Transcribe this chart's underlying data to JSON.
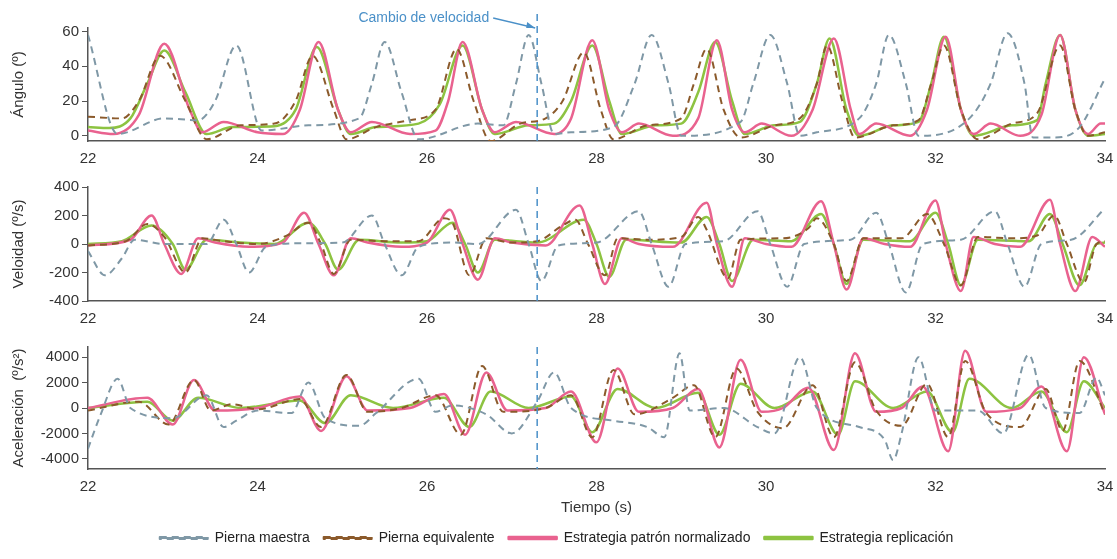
{
  "chart_data": [
    {
      "type": "line",
      "ylabel": "Ángulo (º)",
      "xlim": [
        22,
        34
      ],
      "xticks": [
        22,
        24,
        26,
        28,
        30,
        32,
        34
      ],
      "ylim": [
        -3,
        62
      ],
      "yticks": [
        0,
        20,
        40,
        60
      ],
      "grid": false,
      "legend": false,
      "ref_lines": [
        {
          "axis": "x",
          "value": 27.3,
          "label": "Cambio de velocidad",
          "color": "#4a90c8",
          "line_style": "dashed"
        }
      ],
      "series": [
        {
          "color": "#7f98a6",
          "line_style": "dashed",
          "x": [
            22,
            22.35,
            22.9,
            23.3,
            23.5,
            23.75,
            24.05,
            24.6,
            25.2,
            25.35,
            25.5,
            25.7,
            25.9,
            26.6,
            26.9,
            27.05,
            27.2,
            27.35,
            27.5,
            27.7,
            28.2,
            28.45,
            28.65,
            28.85,
            29.0,
            29.7,
            29.85,
            30.05,
            30.25,
            30.4,
            30.6,
            31.1,
            31.3,
            31.45,
            31.65,
            31.8,
            32.4,
            32.65,
            32.85,
            33.05,
            33.15,
            33.4,
            33.7,
            34
          ],
          "values": [
            58,
            1,
            10,
            9,
            20,
            52,
            3,
            6,
            10,
            30,
            54,
            25,
            -2,
            7,
            6,
            30,
            58,
            30,
            1,
            2,
            5,
            30,
            58,
            30,
            0,
            8,
            30,
            58,
            30,
            0,
            2,
            10,
            30,
            58,
            30,
            0,
            10,
            30,
            59,
            30,
            -1,
            -1,
            5,
            33
          ]
        },
        {
          "color": "#8b5a2b",
          "line_style": "dashed",
          "x": [
            22,
            22.4,
            22.6,
            22.85,
            23.15,
            23.4,
            23.8,
            24.2,
            24.45,
            24.65,
            24.9,
            25.05,
            25.4,
            25.8,
            26.1,
            26.35,
            26.55,
            26.75,
            27.1,
            27.4,
            27.6,
            27.85,
            28.05,
            28.2,
            28.6,
            29.0,
            29.15,
            29.3,
            29.5,
            29.7,
            30.1,
            30.4,
            30.6,
            30.72,
            30.9,
            31.05,
            31.5,
            31.8,
            31.95,
            32.1,
            32.3,
            32.5,
            32.9,
            33.2,
            33.47,
            33.65,
            33.8,
            34
          ],
          "values": [
            11,
            10,
            20,
            46,
            20,
            -2,
            6,
            7,
            20,
            46,
            15,
            -2,
            5,
            9,
            15,
            50,
            20,
            -3,
            7,
            10,
            20,
            48,
            15,
            -2,
            6,
            10,
            30,
            50,
            15,
            -1,
            6,
            10,
            30,
            52,
            20,
            -1,
            6,
            9,
            30,
            52,
            15,
            -2,
            7,
            13,
            52,
            15,
            0,
            2
          ]
        },
        {
          "color": "#e9628f",
          "line_style": "solid",
          "x": [
            22,
            22.3,
            22.6,
            22.9,
            23.2,
            23.35,
            23.6,
            24.0,
            24.3,
            24.5,
            24.72,
            24.95,
            25.1,
            25.35,
            25.8,
            26.1,
            26.25,
            26.42,
            26.65,
            26.8,
            27.05,
            27.5,
            27.7,
            27.95,
            28.15,
            28.3,
            28.5,
            28.9,
            29.2,
            29.42,
            29.6,
            29.75,
            29.95,
            30.3,
            30.55,
            30.8,
            31.0,
            31.1,
            31.3,
            31.7,
            31.9,
            32.12,
            32.3,
            32.45,
            32.65,
            33.0,
            33.25,
            33.47,
            33.65,
            33.8,
            33.95,
            34
          ],
          "values": [
            3,
            1,
            12,
            53,
            15,
            2,
            8,
            2,
            1,
            15,
            54,
            15,
            2,
            8,
            1,
            3,
            20,
            54,
            15,
            2,
            8,
            1,
            10,
            55,
            15,
            2,
            7,
            0,
            10,
            55,
            15,
            2,
            7,
            0,
            15,
            56,
            15,
            1,
            7,
            0,
            15,
            57,
            15,
            1,
            7,
            0,
            12,
            58,
            15,
            1,
            7,
            7
          ]
        },
        {
          "color": "#8dc341",
          "line_style": "solid",
          "x": [
            22,
            22.25,
            22.5,
            22.7,
            22.9,
            23.15,
            23.4,
            23.7,
            24.2,
            24.45,
            24.7,
            24.95,
            25.1,
            25.4,
            25.9,
            26.15,
            26.42,
            26.65,
            26.8,
            27.2,
            27.5,
            27.7,
            27.95,
            28.15,
            28.3,
            28.7,
            29.0,
            29.2,
            29.4,
            29.6,
            29.75,
            30.1,
            30.4,
            30.6,
            30.75,
            30.95,
            31.1,
            31.5,
            31.8,
            31.95,
            32.1,
            32.3,
            32.45,
            32.9,
            33.2,
            33.3,
            33.47,
            33.65,
            33.8,
            34
          ],
          "values": [
            5,
            4.5,
            10,
            30,
            49,
            25,
            1,
            5,
            5.5,
            15,
            51,
            15,
            1,
            5,
            7,
            18,
            52,
            15,
            1,
            6,
            7,
            20,
            52,
            20,
            1,
            6,
            7,
            25,
            54,
            20,
            1,
            6,
            8,
            30,
            56,
            15,
            0,
            6,
            8,
            30,
            57,
            15,
            0,
            6,
            9,
            30,
            58,
            15,
            0,
            1
          ]
        }
      ]
    },
    {
      "type": "line",
      "ylabel": "Veloidad (º/s)",
      "xlim": [
        22,
        34
      ],
      "xticks": [
        22,
        24,
        26,
        28,
        30,
        32,
        34
      ],
      "ylim": [
        -400,
        400
      ],
      "yticks": [
        -400,
        -200,
        0,
        200,
        400
      ],
      "grid": false,
      "legend": false,
      "ref_lines": [
        {
          "axis": "x",
          "value": 27.3,
          "color": "#4a90c8",
          "line_style": "dashed"
        }
      ],
      "series": [
        {
          "color": "#7f98a6",
          "line_style": "dashed",
          "x": [
            22,
            22.2,
            22.4,
            22.55,
            22.9,
            23.4,
            23.6,
            23.75,
            23.9,
            24.1,
            24.5,
            25.0,
            25.35,
            25.5,
            25.7,
            25.9,
            26.3,
            26.6,
            27.05,
            27.2,
            27.35,
            27.55,
            28.0,
            28.5,
            28.65,
            28.85,
            29.05,
            29.5,
            29.9,
            30.05,
            30.25,
            30.45,
            31.0,
            31.3,
            31.45,
            31.65,
            31.85,
            32.3,
            32.7,
            32.85,
            33.05,
            33.25,
            33.6,
            34
          ],
          "values": [
            -50,
            -220,
            -100,
            30,
            0,
            0,
            170,
            0,
            -200,
            -20,
            5,
            10,
            200,
            0,
            -220,
            -20,
            10,
            0,
            240,
            0,
            -260,
            -10,
            10,
            230,
            0,
            -300,
            0,
            20,
            230,
            0,
            -300,
            0,
            30,
            220,
            0,
            -340,
            0,
            30,
            230,
            0,
            -300,
            0,
            30,
            250
          ]
        },
        {
          "color": "#8b5a2b",
          "line_style": "dashed",
          "x": [
            22,
            22.45,
            22.7,
            22.9,
            23.15,
            23.35,
            23.6,
            24.0,
            24.35,
            24.6,
            24.75,
            24.9,
            25.1,
            25.5,
            25.9,
            26.2,
            26.3,
            26.5,
            26.7,
            27.0,
            27.3,
            27.6,
            27.75,
            27.9,
            28.1,
            28.25,
            28.6,
            29.0,
            29.2,
            29.3,
            29.55,
            29.7,
            30.2,
            30.5,
            30.6,
            30.8,
            30.95,
            31.15,
            31.6,
            31.9,
            32.1,
            32.3,
            32.5,
            32.9,
            33.2,
            33.4,
            33.55,
            33.75,
            33.9,
            34
          ],
          "values": [
            -10,
            20,
            140,
            50,
            -200,
            40,
            20,
            0,
            60,
            150,
            0,
            -210,
            30,
            20,
            20,
            180,
            150,
            -220,
            40,
            10,
            20,
            130,
            170,
            0,
            -220,
            40,
            30,
            50,
            190,
            100,
            -240,
            30,
            40,
            110,
            180,
            0,
            -260,
            40,
            40,
            210,
            0,
            -290,
            50,
            40,
            60,
            200,
            0,
            -270,
            0,
            20
          ]
        },
        {
          "color": "#e9628f",
          "line_style": "solid",
          "x": [
            22,
            22.5,
            22.75,
            22.9,
            23.1,
            23.3,
            23.5,
            23.9,
            24.3,
            24.55,
            24.72,
            24.9,
            25.1,
            25.3,
            25.7,
            26.0,
            26.27,
            26.42,
            26.6,
            26.8,
            27.0,
            27.4,
            27.8,
            27.95,
            28.1,
            28.3,
            28.5,
            28.9,
            29.3,
            29.42,
            29.6,
            29.75,
            30.0,
            30.3,
            30.65,
            30.8,
            30.95,
            31.15,
            31.4,
            31.7,
            32.0,
            32.12,
            32.3,
            32.45,
            32.7,
            33.0,
            33.35,
            33.47,
            33.65,
            33.85,
            34
          ],
          "values": [
            -10,
            30,
            200,
            0,
            -210,
            40,
            10,
            -20,
            10,
            220,
            0,
            -220,
            40,
            10,
            -20,
            10,
            240,
            0,
            -250,
            40,
            10,
            -10,
            270,
            0,
            -280,
            40,
            0,
            -20,
            290,
            0,
            -300,
            40,
            0,
            -20,
            300,
            0,
            -320,
            40,
            0,
            -20,
            305,
            0,
            -330,
            50,
            0,
            -20,
            310,
            0,
            -330,
            50,
            -20
          ]
        },
        {
          "color": "#8dc341",
          "line_style": "solid",
          "x": [
            22,
            22.4,
            22.75,
            23.0,
            23.15,
            23.4,
            23.8,
            24.2,
            24.6,
            24.8,
            24.95,
            25.2,
            25.7,
            26.0,
            26.3,
            26.45,
            26.6,
            26.8,
            27.3,
            27.85,
            28.0,
            28.15,
            28.35,
            29.0,
            29.3,
            29.45,
            29.6,
            29.85,
            30.3,
            30.65,
            30.8,
            30.95,
            31.15,
            31.7,
            32.0,
            32.15,
            32.3,
            32.5,
            33.1,
            33.35,
            33.5,
            33.7,
            33.9,
            34
          ],
          "values": [
            0,
            20,
            130,
            0,
            -180,
            30,
            10,
            0,
            150,
            0,
            -180,
            30,
            10,
            20,
            150,
            0,
            -200,
            30,
            10,
            170,
            0,
            -230,
            30,
            10,
            190,
            0,
            -260,
            30,
            20,
            210,
            0,
            -280,
            30,
            20,
            220,
            0,
            -290,
            30,
            20,
            210,
            0,
            -290,
            0,
            10
          ]
        }
      ]
    },
    {
      "type": "line",
      "xlabel": "Tiempo (s)",
      "ylabel": "Aceleración  (º/s²)",
      "xlim": [
        22,
        34
      ],
      "xticks": [
        22,
        24,
        26,
        28,
        30,
        32,
        34
      ],
      "ylim": [
        -4800,
        4800
      ],
      "yticks": [
        -4000,
        -2000,
        0,
        2000,
        4000
      ],
      "grid": false,
      "legend": "bottom",
      "ref_lines": [
        {
          "axis": "x",
          "value": 27.3,
          "color": "#4a90c8",
          "line_style": "dashed"
        }
      ],
      "series": [
        {
          "name": "Pierna maestra",
          "color": "#7f98a6",
          "line_style": "dashed",
          "x": [
            22,
            22.15,
            22.35,
            22.5,
            23.0,
            23.4,
            23.6,
            23.75,
            24.0,
            24.4,
            24.6,
            24.8,
            25.2,
            25.4,
            25.9,
            26.1,
            26.3,
            26.7,
            27.0,
            27.3,
            27.5,
            27.7,
            28.2,
            28.6,
            28.8,
            28.98,
            29.1,
            29.5,
            29.9,
            30.1,
            30.4,
            30.6,
            31.1,
            31.4,
            31.5,
            31.6,
            31.8,
            32.0,
            32.5,
            32.8,
            33.1,
            33.3,
            33.7,
            33.9,
            34
          ],
          "values": [
            -3200,
            -500,
            2300,
            0,
            -800,
            1000,
            -1500,
            -1000,
            -200,
            -400,
            2000,
            -800,
            -1400,
            -400,
            2300,
            -300,
            200,
            -500,
            -2000,
            500,
            2800,
            0,
            -1000,
            -1500,
            -2300,
            4300,
            -200,
            0,
            -1500,
            -2000,
            4000,
            0,
            -1500,
            -2500,
            -4100,
            -2000,
            4000,
            -200,
            -200,
            -2000,
            4200,
            0,
            -400,
            2400,
            1000
          ]
        },
        {
          "name": "Pierna equivalente",
          "color": "#8b5a2b",
          "line_style": "dashed",
          "x": [
            22,
            22.6,
            22.95,
            23.25,
            23.45,
            23.7,
            24.0,
            24.5,
            24.75,
            25.05,
            25.3,
            25.7,
            26.1,
            26.4,
            26.65,
            26.9,
            27.4,
            27.7,
            27.95,
            28.2,
            28.45,
            28.9,
            29.15,
            29.4,
            29.65,
            29.9,
            30.2,
            30.55,
            30.8,
            31.05,
            31.3,
            31.6,
            31.9,
            32.15,
            32.35,
            32.6,
            33.0,
            33.3,
            33.5,
            33.7,
            34
          ],
          "values": [
            -200,
            500,
            -1300,
            2200,
            -200,
            300,
            -100,
            700,
            -1500,
            2600,
            -300,
            0,
            1000,
            -2100,
            3300,
            -300,
            0,
            1000,
            -2300,
            3000,
            -500,
            800,
            1800,
            -2300,
            3100,
            -300,
            -1600,
            1800,
            -2300,
            3600,
            -200,
            -1400,
            1900,
            -2300,
            3700,
            -400,
            -1500,
            1500,
            -1800,
            3700,
            -500
          ]
        },
        {
          "name": "Estrategia patrón normalizado",
          "color": "#e9628f",
          "line_style": "solid",
          "x": [
            22,
            22.7,
            23.0,
            23.25,
            23.5,
            24.0,
            24.5,
            24.75,
            25.05,
            25.3,
            25.8,
            26.2,
            26.45,
            26.7,
            26.95,
            27.4,
            27.7,
            28.0,
            28.25,
            28.5,
            28.9,
            29.2,
            29.45,
            29.7,
            29.95,
            30.2,
            30.5,
            30.8,
            31.05,
            31.3,
            31.6,
            31.85,
            32.15,
            32.35,
            32.6,
            33.0,
            33.25,
            33.55,
            33.75,
            34
          ],
          "values": [
            0,
            800,
            -1300,
            2200,
            -200,
            0,
            900,
            -1800,
            2500,
            -200,
            0,
            1100,
            -2100,
            2800,
            -200,
            0,
            1300,
            -2700,
            3100,
            -300,
            0,
            1500,
            -3100,
            3800,
            -300,
            0,
            1600,
            -3300,
            4300,
            -300,
            0,
            1700,
            -3400,
            4500,
            -300,
            0,
            1700,
            -3400,
            4000,
            -500
          ]
        },
        {
          "name": "Estrategia replicación",
          "color": "#8dc341",
          "line_style": "solid",
          "x": [
            22,
            22.7,
            23.0,
            23.3,
            23.8,
            24.5,
            24.8,
            25.1,
            25.6,
            26.2,
            26.5,
            26.75,
            27.2,
            27.7,
            27.95,
            28.25,
            28.7,
            29.2,
            29.45,
            29.7,
            30.1,
            30.55,
            30.85,
            31.05,
            31.5,
            31.9,
            32.2,
            32.4,
            32.9,
            33.25,
            33.55,
            33.75,
            34
          ],
          "values": [
            0,
            500,
            -1000,
            800,
            0,
            600,
            -1200,
            1000,
            0,
            800,
            -1500,
            1300,
            0,
            900,
            -1900,
            1500,
            0,
            1200,
            -2100,
            1900,
            0,
            1300,
            -2100,
            2100,
            0,
            1300,
            -1900,
            2300,
            0,
            1300,
            -1900,
            2100,
            0
          ]
        }
      ]
    }
  ]
}
